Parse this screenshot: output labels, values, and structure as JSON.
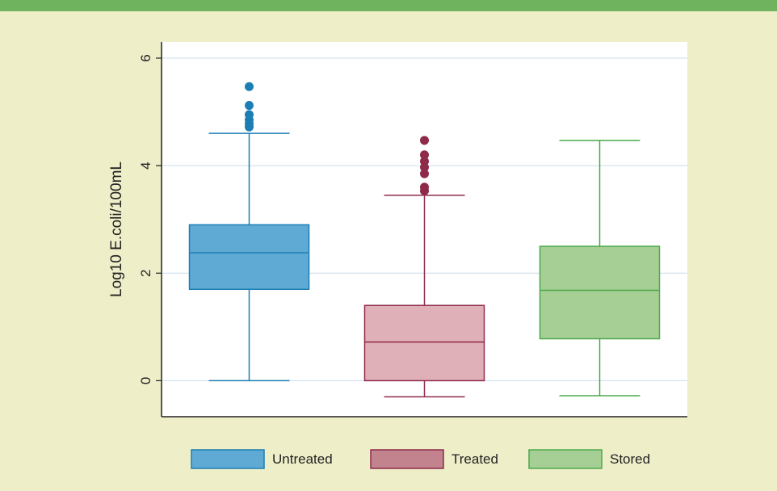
{
  "chart_data": {
    "type": "box",
    "title": "",
    "xlabel": "",
    "ylabel": "Log10 E.coli/100mL",
    "ylim": [
      -0.67,
      6.3
    ],
    "yticks": [
      0,
      2,
      4,
      6
    ],
    "grid": true,
    "legend_position": "bottom",
    "series": [
      {
        "name": "Untreated",
        "fill": "#5faad4",
        "stroke": "#1b7fb3",
        "whisker_low": 0,
        "q1": 1.7,
        "median": 2.38,
        "q3": 2.9,
        "whisker_high": 4.6,
        "outliers": [
          4.72,
          4.78,
          4.85,
          4.95,
          5.12,
          5.47
        ]
      },
      {
        "name": "Treated",
        "fill": "#e0b0b8",
        "stroke": "#8e2a4a",
        "whisker_low": -0.3,
        "q1": 0,
        "median": 0.72,
        "q3": 1.4,
        "whisker_high": 3.45,
        "outliers": [
          3.53,
          3.6,
          3.85,
          3.97,
          4.08,
          4.2,
          4.47
        ]
      },
      {
        "name": "Stored",
        "fill": "#a6cf95",
        "stroke": "#4ca84a",
        "whisker_low": -0.28,
        "q1": 0.78,
        "median": 1.68,
        "q3": 2.5,
        "whisker_high": 4.47,
        "outliers": []
      }
    ],
    "legend_swatches": [
      "#5faad4",
      "#c2838e",
      "#a6cf95"
    ]
  }
}
